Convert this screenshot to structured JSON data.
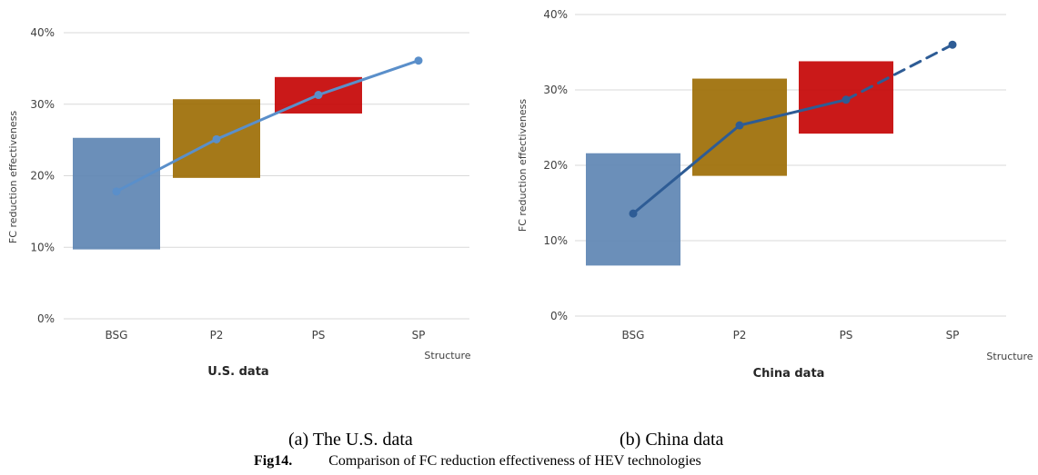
{
  "chart_data": [
    {
      "type": "line",
      "title": "U.S. data",
      "xlabel": "Structure",
      "ylabel": "FC reduction effectiveness",
      "ylim": [
        0,
        40
      ],
      "yticks": [
        "0%",
        "10%",
        "20%",
        "30%",
        "40%"
      ],
      "categories": [
        "BSG",
        "P2",
        "PS",
        "SP"
      ],
      "grid": true,
      "colors": [
        "#5b83b1",
        "#9b6a00",
        "#c40000",
        "#5b83b1"
      ],
      "line_color": "#5a8fca",
      "ranges": [
        {
          "category": "BSG",
          "low": 9.7,
          "high": 25.3
        },
        {
          "category": "P2",
          "low": 19.7,
          "high": 30.7
        },
        {
          "category": "PS",
          "low": 28.7,
          "high": 33.8
        }
      ],
      "series": [
        {
          "values": [
            17.8,
            25.1,
            31.3,
            36.1
          ],
          "dashed_from_index": null
        }
      ]
    },
    {
      "type": "line",
      "title": "China data",
      "xlabel": "Structure",
      "ylabel": "FC reduction effectiveness",
      "ylim": [
        0,
        40
      ],
      "yticks": [
        "0%",
        "10%",
        "20%",
        "30%",
        "40%"
      ],
      "categories": [
        "BSG",
        "P2",
        "PS",
        "SP"
      ],
      "grid": true,
      "colors": [
        "#5b83b1",
        "#9b6a00",
        "#c40000",
        "#5b83b1"
      ],
      "line_color": "#2e5c95",
      "ranges": [
        {
          "category": "BSG",
          "low": 6.7,
          "high": 21.6
        },
        {
          "category": "P2",
          "low": 18.6,
          "high": 31.5
        },
        {
          "category": "PS",
          "low": 24.2,
          "high": 33.8
        }
      ],
      "series": [
        {
          "values": [
            13.6,
            25.3,
            28.7,
            36.0
          ],
          "dashed_from_index": 2
        }
      ]
    }
  ],
  "captions": {
    "sub_a": "(a) The U.S. data",
    "sub_b": "(b) China data",
    "fig_label": "Fig14.",
    "fig_text": "Comparison of FC reduction effectiveness of HEV technologies"
  }
}
